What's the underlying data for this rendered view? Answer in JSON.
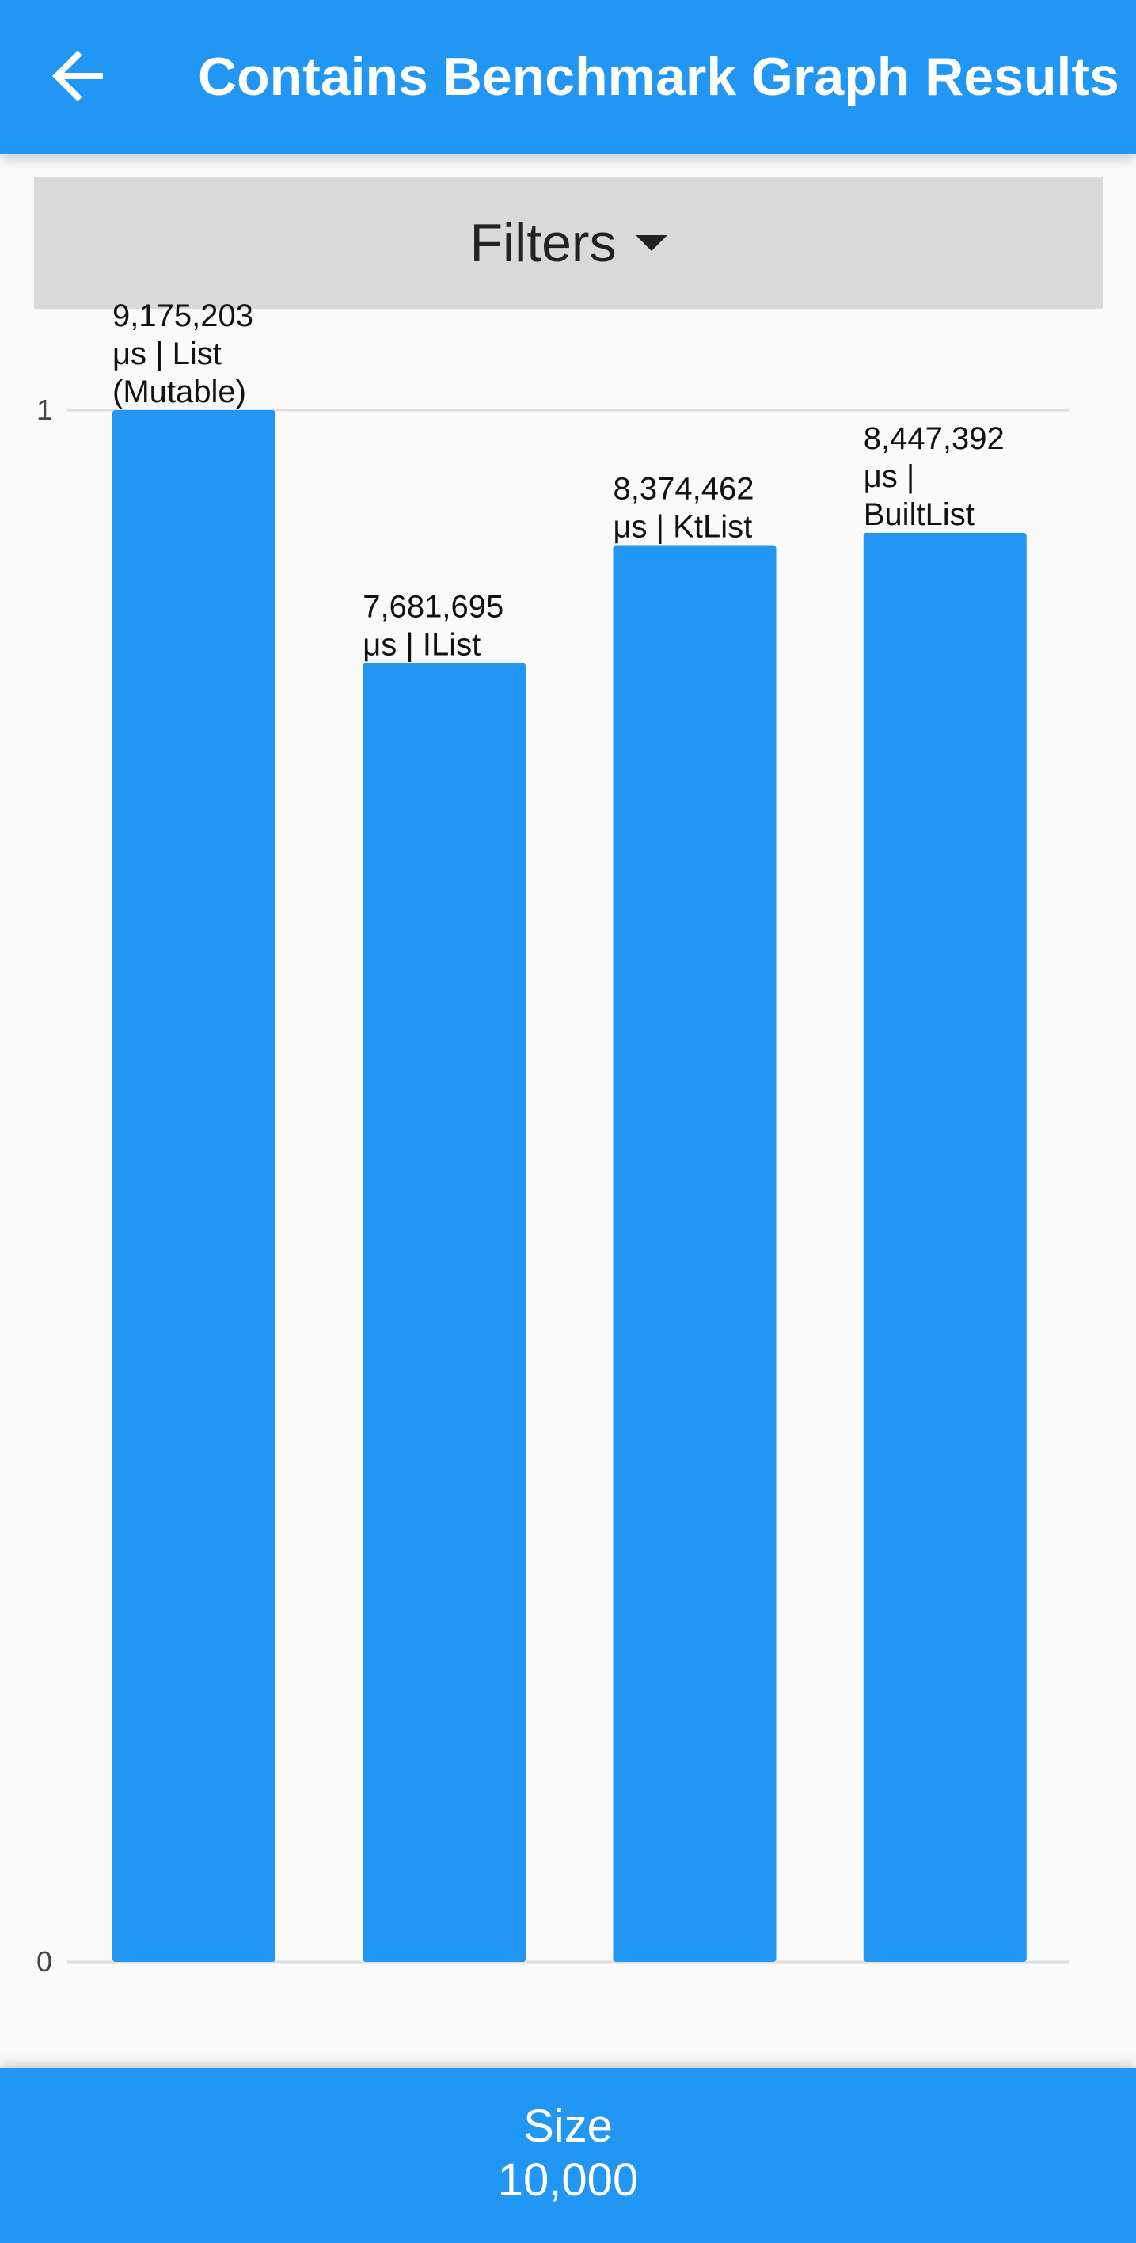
{
  "app_bar": {
    "title": "Contains Benchmark Graph Results",
    "back_icon": "arrow-back-icon"
  },
  "filters": {
    "label": "Filters",
    "icon": "caret-down-icon"
  },
  "bottom_bar": {
    "label": "Size",
    "value": "10,000"
  },
  "colors": {
    "primary": "#2196f3",
    "bar": "#2196f3",
    "filters_background": "#d9d9d9",
    "background": "#fafafa"
  },
  "chart_data": {
    "type": "bar",
    "categories": [
      "List (Mutable)",
      "IList",
      "KtList",
      "BuiltList"
    ],
    "values": [
      1,
      0.837,
      0.913,
      0.921
    ],
    "data_labels": [
      [
        "9,175,203",
        "μs | List",
        "(Mutable)"
      ],
      [
        "7,681,695",
        "μs | IList"
      ],
      [
        "8,374,462",
        "μs | KtList"
      ],
      [
        "8,447,392",
        "μs |",
        "BuiltList"
      ]
    ],
    "y_ticks": [
      "0",
      "1"
    ],
    "ylim": [
      0,
      1
    ],
    "grid": "horizontal lines at 0 and 1",
    "legend": "none"
  }
}
